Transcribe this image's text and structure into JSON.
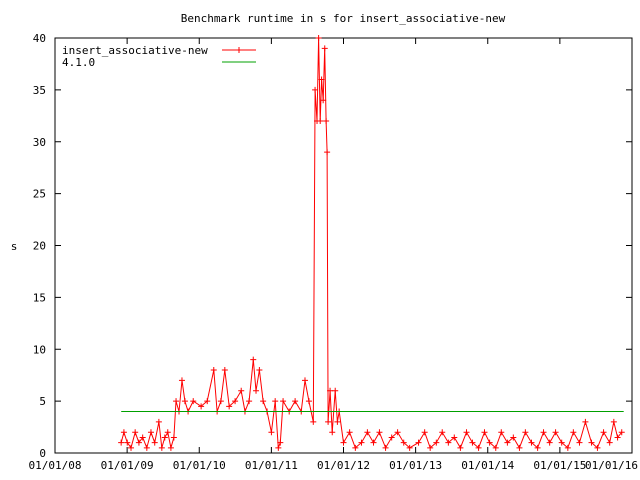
{
  "chart_data": {
    "type": "line",
    "title": "Benchmark runtime in s for insert_associative-new",
    "xlabel": "",
    "ylabel": "s",
    "xlim": [
      "2008-01-01",
      "2016-01-01"
    ],
    "ylim": [
      0,
      40
    ],
    "x_ticks": [
      "01/01/08",
      "01/01/09",
      "01/01/10",
      "01/01/11",
      "01/01/12",
      "01/01/13",
      "01/01/14",
      "01/01/15",
      "01/01/16"
    ],
    "y_ticks": [
      "0",
      "5",
      "10",
      "15",
      "20",
      "25",
      "30",
      "35",
      "40"
    ],
    "legend_position": "top-left",
    "grid": false,
    "series": [
      {
        "name": "insert_associative-new",
        "color": "#ff0000",
        "marker": "plus",
        "points": [
          [
            "2008-12-01",
            1.0
          ],
          [
            "2008-12-15",
            2.0
          ],
          [
            "2009-01-01",
            1.0
          ],
          [
            "2009-01-20",
            0.5
          ],
          [
            "2009-02-10",
            2.0
          ],
          [
            "2009-03-01",
            1.0
          ],
          [
            "2009-03-20",
            1.5
          ],
          [
            "2009-04-10",
            0.5
          ],
          [
            "2009-05-01",
            2.0
          ],
          [
            "2009-05-20",
            1.0
          ],
          [
            "2009-06-10",
            3.0
          ],
          [
            "2009-06-25",
            0.5
          ],
          [
            "2009-07-10",
            1.5
          ],
          [
            "2009-07-25",
            2.0
          ],
          [
            "2009-08-10",
            0.5
          ],
          [
            "2009-08-25",
            1.5
          ],
          [
            "2009-09-05",
            5.0
          ],
          [
            "2009-09-20",
            4.0
          ],
          [
            "2009-10-05",
            7.0
          ],
          [
            "2009-10-20",
            5.0
          ],
          [
            "2009-11-05",
            4.0
          ],
          [
            "2009-12-01",
            5.0
          ],
          [
            "2010-01-10",
            4.5
          ],
          [
            "2010-02-10",
            5.0
          ],
          [
            "2010-03-15",
            8.0
          ],
          [
            "2010-04-01",
            4.0
          ],
          [
            "2010-04-20",
            5.0
          ],
          [
            "2010-05-10",
            8.0
          ],
          [
            "2010-06-01",
            4.5
          ],
          [
            "2010-07-01",
            5.0
          ],
          [
            "2010-08-01",
            6.0
          ],
          [
            "2010-08-20",
            4.0
          ],
          [
            "2010-09-10",
            5.0
          ],
          [
            "2010-10-01",
            9.0
          ],
          [
            "2010-10-15",
            6.0
          ],
          [
            "2010-11-01",
            8.0
          ],
          [
            "2010-11-20",
            5.0
          ],
          [
            "2010-12-10",
            4.0
          ],
          [
            "2011-01-01",
            2.0
          ],
          [
            "2011-01-20",
            5.0
          ],
          [
            "2011-02-05",
            0.5
          ],
          [
            "2011-02-15",
            1.0
          ],
          [
            "2011-03-01",
            5.0
          ],
          [
            "2011-04-01",
            4.0
          ],
          [
            "2011-05-01",
            5.0
          ],
          [
            "2011-06-01",
            4.0
          ],
          [
            "2011-06-20",
            7.0
          ],
          [
            "2011-07-10",
            5.0
          ],
          [
            "2011-08-01",
            3.0
          ],
          [
            "2011-08-10",
            35.0
          ],
          [
            "2011-08-20",
            32.0
          ],
          [
            "2011-08-28",
            40.0
          ],
          [
            "2011-09-05",
            32.0
          ],
          [
            "2011-09-12",
            36.0
          ],
          [
            "2011-09-20",
            34.0
          ],
          [
            "2011-09-28",
            39.0
          ],
          [
            "2011-10-05",
            32.0
          ],
          [
            "2011-10-10",
            29.0
          ],
          [
            "2011-10-15",
            3.0
          ],
          [
            "2011-10-25",
            6.0
          ],
          [
            "2011-11-05",
            2.0
          ],
          [
            "2011-11-20",
            6.0
          ],
          [
            "2011-12-01",
            3.0
          ],
          [
            "2011-12-10",
            4.0
          ],
          [
            "2012-01-01",
            1.0
          ],
          [
            "2012-02-01",
            2.0
          ],
          [
            "2012-03-01",
            0.5
          ],
          [
            "2012-04-01",
            1.0
          ],
          [
            "2012-05-01",
            2.0
          ],
          [
            "2012-06-01",
            1.0
          ],
          [
            "2012-07-01",
            2.0
          ],
          [
            "2012-08-01",
            0.5
          ],
          [
            "2012-09-01",
            1.5
          ],
          [
            "2012-10-01",
            2.0
          ],
          [
            "2012-11-01",
            1.0
          ],
          [
            "2012-12-01",
            0.5
          ],
          [
            "2013-01-15",
            1.0
          ],
          [
            "2013-02-15",
            2.0
          ],
          [
            "2013-03-15",
            0.5
          ],
          [
            "2013-04-15",
            1.0
          ],
          [
            "2013-05-15",
            2.0
          ],
          [
            "2013-06-15",
            1.0
          ],
          [
            "2013-07-15",
            1.5
          ],
          [
            "2013-08-15",
            0.5
          ],
          [
            "2013-09-15",
            2.0
          ],
          [
            "2013-10-15",
            1.0
          ],
          [
            "2013-11-15",
            0.5
          ],
          [
            "2013-12-15",
            2.0
          ],
          [
            "2014-01-10",
            1.0
          ],
          [
            "2014-02-10",
            0.5
          ],
          [
            "2014-03-10",
            2.0
          ],
          [
            "2014-04-10",
            1.0
          ],
          [
            "2014-05-10",
            1.5
          ],
          [
            "2014-06-10",
            0.5
          ],
          [
            "2014-07-10",
            2.0
          ],
          [
            "2014-08-10",
            1.0
          ],
          [
            "2014-09-10",
            0.5
          ],
          [
            "2014-10-10",
            2.0
          ],
          [
            "2014-11-10",
            1.0
          ],
          [
            "2014-12-10",
            2.0
          ],
          [
            "2015-01-10",
            1.0
          ],
          [
            "2015-02-10",
            0.5
          ],
          [
            "2015-03-10",
            2.0
          ],
          [
            "2015-04-10",
            1.0
          ],
          [
            "2015-05-10",
            3.0
          ],
          [
            "2015-06-10",
            1.0
          ],
          [
            "2015-07-10",
            0.5
          ],
          [
            "2015-08-10",
            2.0
          ],
          [
            "2015-09-10",
            1.0
          ],
          [
            "2015-10-01",
            3.0
          ],
          [
            "2015-10-20",
            1.5
          ],
          [
            "2015-11-10",
            2.0
          ]
        ]
      },
      {
        "name": "4.1.0",
        "color": "#00a000",
        "marker": "none",
        "points": [
          [
            "2008-12-01",
            4.0
          ],
          [
            "2015-11-20",
            4.0
          ]
        ]
      }
    ]
  }
}
